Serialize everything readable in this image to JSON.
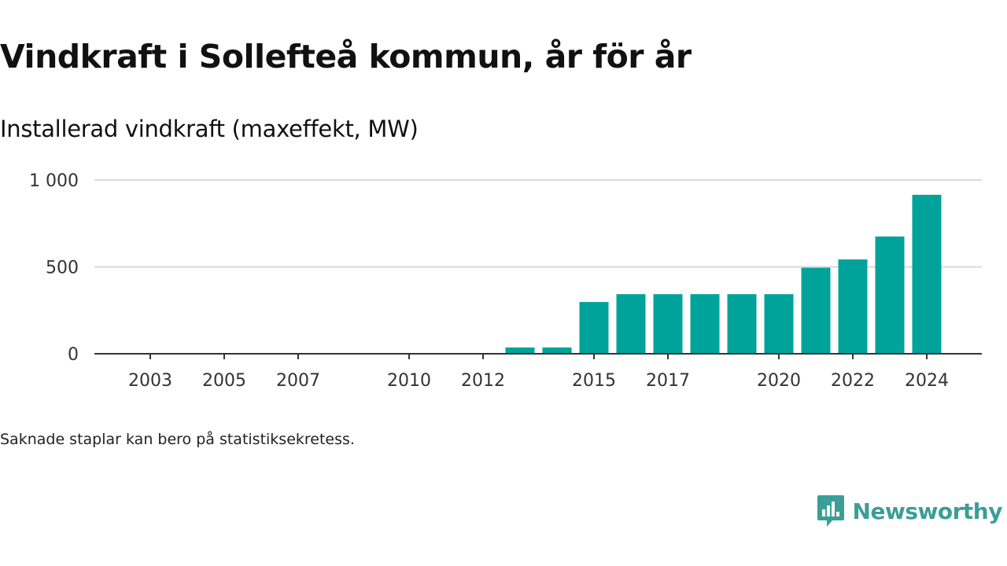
{
  "title": "Vindkraft i Sollefteå kommun, år för år",
  "subtitle": "Installerad vindkraft (maxeffekt, MW)",
  "footnote": "Saknade staplar kan bero på statistiksekretess.",
  "brand": {
    "name": "Newsworthy",
    "icon": "newsworthy-logo-icon",
    "color": "#3b9e96"
  },
  "colors": {
    "bar": "#00a39a",
    "grid": "#d9d9d9",
    "axis": "#333333"
  },
  "chart_data": {
    "type": "bar",
    "title": "Vindkraft i Sollefteå kommun, år för år",
    "subtitle": "Installerad vindkraft (maxeffekt, MW)",
    "xlabel": "",
    "ylabel": "",
    "ylim": [
      0,
      1000
    ],
    "y_ticks": [
      0,
      500,
      1000
    ],
    "y_tick_labels": [
      "0",
      "500",
      "1 000"
    ],
    "x_tick_years": [
      2003,
      2005,
      2007,
      2010,
      2012,
      2015,
      2017,
      2020,
      2022,
      2024
    ],
    "categories": [
      "2002",
      "2003",
      "2004",
      "2005",
      "2006",
      "2007",
      "2008",
      "2009",
      "2010",
      "2011",
      "2012",
      "2013",
      "2014",
      "2015",
      "2016",
      "2017",
      "2018",
      "2019",
      "2020",
      "2021",
      "2022",
      "2023",
      "2024"
    ],
    "values": [
      0,
      0,
      0,
      0,
      0,
      0,
      0,
      0,
      0,
      0,
      0,
      36,
      36,
      298,
      343,
      343,
      343,
      343,
      343,
      495,
      543,
      675,
      915
    ],
    "grid": true,
    "legend": "none"
  }
}
